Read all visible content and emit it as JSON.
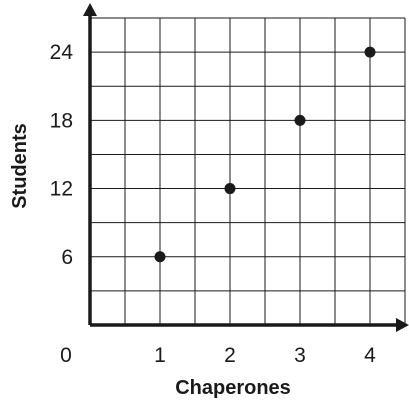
{
  "chart_data": {
    "type": "scatter",
    "title": "",
    "xlabel": "Chaperones",
    "ylabel": "Students",
    "origin_label": "0",
    "x_tick_labels": [
      "1",
      "2",
      "3",
      "4"
    ],
    "y_tick_labels": [
      "6",
      "12",
      "18",
      "24"
    ],
    "x_ticks": [
      1,
      2,
      3,
      4
    ],
    "y_ticks": [
      6,
      12,
      18,
      24
    ],
    "xlim": [
      0,
      4.5
    ],
    "ylim": [
      0,
      27
    ],
    "grid": true,
    "x_grid_step": 0.5,
    "y_grid_step": 3,
    "points": [
      {
        "x": 1,
        "y": 6
      },
      {
        "x": 2,
        "y": 12
      },
      {
        "x": 3,
        "y": 18
      },
      {
        "x": 4,
        "y": 24
      }
    ],
    "colors": {
      "axis": "#1a1a1a",
      "grid": "#1a1a1a",
      "point": "#1a1a1a"
    }
  }
}
